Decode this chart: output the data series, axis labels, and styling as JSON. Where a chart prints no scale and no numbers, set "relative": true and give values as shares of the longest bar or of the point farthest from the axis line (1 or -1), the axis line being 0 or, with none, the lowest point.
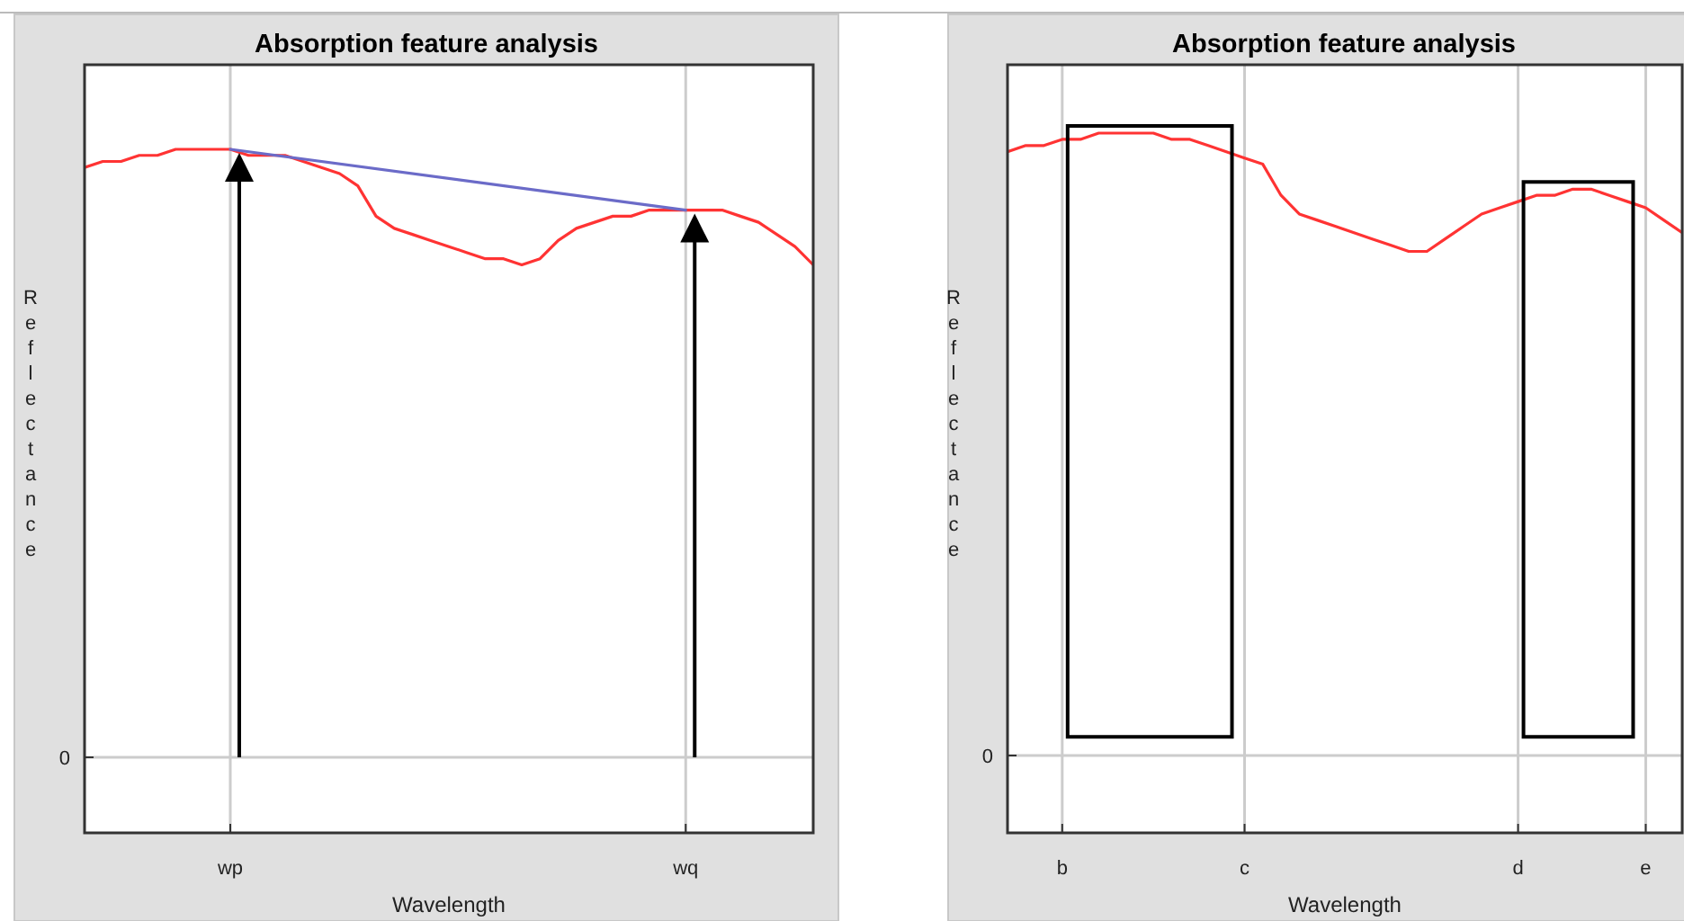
{
  "chart_data": [
    {
      "type": "line",
      "title": "Absorption feature analysis",
      "xlabel": "Wavelength",
      "ylabel": "Reflectance",
      "relative": true,
      "annotations": [
        "0"
      ],
      "grid": true,
      "categories": [
        null,
        null,
        null,
        null,
        null,
        null,
        null,
        null,
        "wp",
        null,
        null,
        null,
        null,
        null,
        null,
        null,
        null,
        null,
        null,
        null,
        null,
        null,
        null,
        null,
        null,
        null,
        null,
        null,
        null,
        null,
        null,
        null,
        null,
        "wq",
        null,
        null,
        null,
        null,
        null,
        null,
        null
      ],
      "series": [
        {
          "color": "#ff3333",
          "values": [
            0.97,
            0.98,
            0.98,
            0.99,
            0.99,
            1.0,
            1.0,
            1.0,
            1.0,
            0.99,
            0.99,
            0.99,
            0.98,
            0.97,
            0.96,
            0.94,
            0.89,
            0.87,
            0.86,
            0.85,
            0.84,
            0.83,
            0.82,
            0.82,
            0.81,
            0.82,
            0.85,
            0.87,
            0.88,
            0.89,
            0.89,
            0.9,
            0.9,
            0.9,
            0.9,
            0.9,
            0.89,
            0.88,
            0.86,
            0.84,
            0.81
          ]
        },
        {
          "color": "#6b6bc8",
          "values": [
            null,
            null,
            null,
            null,
            null,
            null,
            null,
            null,
            1.0,
            null,
            null,
            null,
            null,
            null,
            null,
            null,
            null,
            null,
            null,
            null,
            null,
            null,
            null,
            null,
            null,
            null,
            null,
            null,
            null,
            null,
            null,
            null,
            null,
            0.9,
            null,
            null,
            null,
            null,
            null,
            null,
            null
          ]
        }
      ]
    },
    {
      "type": "line",
      "title": "Absorption feature analysis",
      "xlabel": "Wavelength",
      "ylabel": "Reflectance",
      "relative": true,
      "annotations": [
        "0"
      ],
      "grid": true,
      "categories": [
        null,
        null,
        null,
        "b",
        null,
        null,
        null,
        null,
        null,
        null,
        null,
        null,
        null,
        "c",
        null,
        null,
        null,
        null,
        null,
        null,
        null,
        null,
        null,
        null,
        null,
        null,
        null,
        null,
        "d",
        null,
        null,
        null,
        null,
        null,
        null,
        "e",
        null,
        null
      ],
      "series": [
        {
          "color": "#ff3333",
          "values": [
            0.97,
            0.98,
            0.98,
            0.99,
            0.99,
            1.0,
            1.0,
            1.0,
            1.0,
            0.99,
            0.99,
            0.98,
            0.97,
            0.96,
            0.95,
            0.9,
            0.87,
            0.86,
            0.85,
            0.84,
            0.83,
            0.82,
            0.81,
            0.81,
            0.83,
            0.85,
            0.87,
            0.88,
            0.89,
            0.9,
            0.9,
            0.91,
            0.91,
            0.9,
            0.89,
            0.88,
            0.86,
            0.84
          ]
        }
      ]
    }
  ]
}
